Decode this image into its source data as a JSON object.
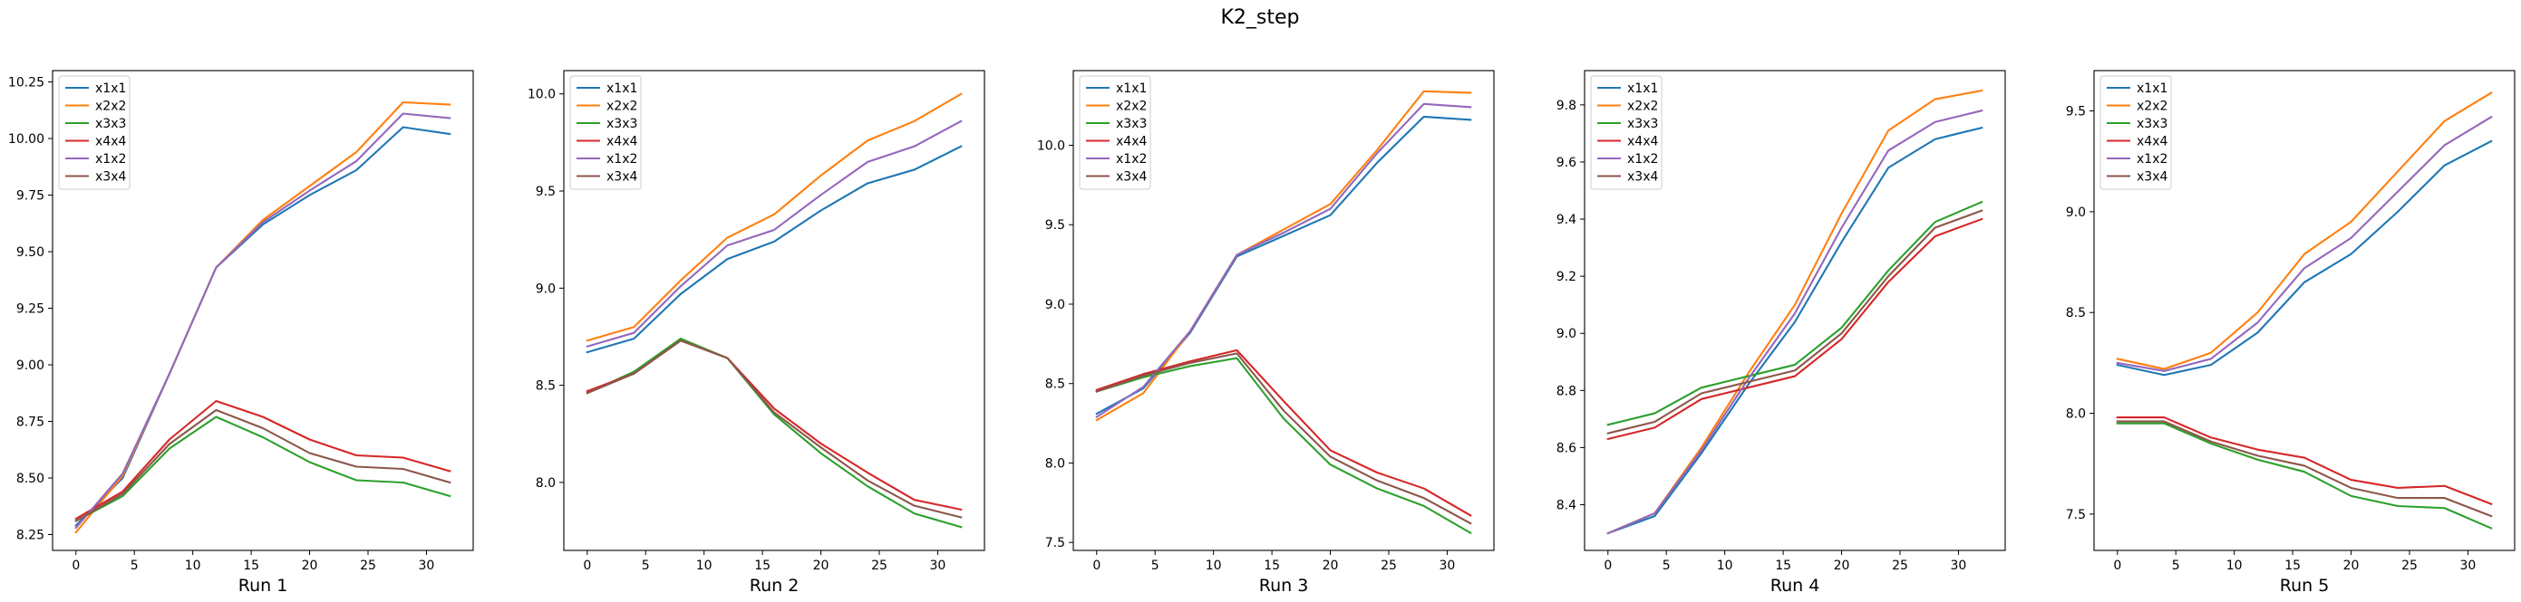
{
  "figure": {
    "suptitle": "K2_step"
  },
  "chart_data": [
    {
      "type": "line",
      "xlabel": "Run 1",
      "x": [
        0,
        4,
        8,
        12,
        16,
        20,
        24,
        28,
        32
      ],
      "xlim": [
        -2,
        34
      ],
      "ylim": [
        8.18,
        10.3
      ],
      "xticks": [
        0,
        5,
        10,
        15,
        20,
        25,
        30
      ],
      "yticks": [
        8.25,
        8.5,
        8.75,
        9.0,
        9.25,
        9.5,
        9.75,
        10.0,
        10.25
      ],
      "ytick_decimals": 2,
      "legend_position": "upper-left",
      "series": [
        {
          "name": "x1x1",
          "color": "#1f77b4",
          "values": [
            8.29,
            8.5,
            8.96,
            9.43,
            9.62,
            9.75,
            9.86,
            10.05,
            10.02
          ]
        },
        {
          "name": "x2x2",
          "color": "#ff7f0e",
          "values": [
            8.26,
            8.51,
            8.96,
            9.43,
            9.64,
            9.79,
            9.94,
            10.16,
            10.15
          ]
        },
        {
          "name": "x3x3",
          "color": "#2ca02c",
          "values": [
            8.31,
            8.42,
            8.63,
            8.77,
            8.68,
            8.57,
            8.49,
            8.48,
            8.42
          ]
        },
        {
          "name": "x4x4",
          "color": "#d62728",
          "values": [
            8.32,
            8.44,
            8.67,
            8.84,
            8.77,
            8.67,
            8.6,
            8.59,
            8.53
          ]
        },
        {
          "name": "x1x2",
          "color": "#9467bd",
          "values": [
            8.28,
            8.52,
            8.96,
            9.43,
            9.63,
            9.77,
            9.9,
            10.11,
            10.09
          ]
        },
        {
          "name": "x3x4",
          "color": "#8c564b",
          "values": [
            8.31,
            8.43,
            8.65,
            8.8,
            8.72,
            8.61,
            8.55,
            8.54,
            8.48
          ]
        }
      ]
    },
    {
      "type": "line",
      "xlabel": "Run 2",
      "x": [
        0,
        4,
        8,
        12,
        16,
        20,
        24,
        28,
        32
      ],
      "xlim": [
        -2,
        34
      ],
      "ylim": [
        7.65,
        10.12
      ],
      "xticks": [
        0,
        5,
        10,
        15,
        20,
        25,
        30
      ],
      "yticks": [
        8.0,
        8.5,
        9.0,
        9.5,
        10.0
      ],
      "ytick_decimals": 1,
      "legend_position": "upper-left",
      "series": [
        {
          "name": "x1x1",
          "color": "#1f77b4",
          "values": [
            8.67,
            8.74,
            8.97,
            9.15,
            9.24,
            9.4,
            9.54,
            9.61,
            9.73
          ]
        },
        {
          "name": "x2x2",
          "color": "#ff7f0e",
          "values": [
            8.73,
            8.8,
            9.04,
            9.26,
            9.38,
            9.58,
            9.76,
            9.86,
            10.0
          ]
        },
        {
          "name": "x3x3",
          "color": "#2ca02c",
          "values": [
            8.46,
            8.57,
            8.74,
            8.64,
            8.35,
            8.15,
            7.98,
            7.84,
            7.77
          ]
        },
        {
          "name": "x4x4",
          "color": "#d62728",
          "values": [
            8.47,
            8.56,
            8.73,
            8.64,
            8.38,
            8.2,
            8.05,
            7.91,
            7.86
          ]
        },
        {
          "name": "x1x2",
          "color": "#9467bd",
          "values": [
            8.7,
            8.77,
            9.01,
            9.22,
            9.3,
            9.48,
            9.65,
            9.73,
            9.86
          ]
        },
        {
          "name": "x3x4",
          "color": "#8c564b",
          "values": [
            8.46,
            8.56,
            8.73,
            8.64,
            8.36,
            8.18,
            8.01,
            7.88,
            7.82
          ]
        }
      ]
    },
    {
      "type": "line",
      "xlabel": "Run 3",
      "x": [
        0,
        4,
        8,
        12,
        16,
        20,
        24,
        28,
        32
      ],
      "xlim": [
        -2,
        34
      ],
      "ylim": [
        7.45,
        10.47
      ],
      "xticks": [
        0,
        5,
        10,
        15,
        20,
        25,
        30
      ],
      "yticks": [
        7.5,
        8.0,
        8.5,
        9.0,
        9.5,
        10.0
      ],
      "ytick_decimals": 1,
      "legend_position": "upper-left",
      "series": [
        {
          "name": "x1x1",
          "color": "#1f77b4",
          "values": [
            8.31,
            8.47,
            8.82,
            9.3,
            9.43,
            9.56,
            9.89,
            10.18,
            10.16
          ]
        },
        {
          "name": "x2x2",
          "color": "#ff7f0e",
          "values": [
            8.27,
            8.44,
            8.83,
            9.31,
            9.47,
            9.63,
            9.97,
            10.34,
            10.33
          ]
        },
        {
          "name": "x3x3",
          "color": "#2ca02c",
          "values": [
            8.45,
            8.54,
            8.61,
            8.66,
            8.28,
            7.99,
            7.84,
            7.73,
            7.56
          ]
        },
        {
          "name": "x4x4",
          "color": "#d62728",
          "values": [
            8.46,
            8.56,
            8.64,
            8.71,
            8.39,
            8.08,
            7.94,
            7.84,
            7.67
          ]
        },
        {
          "name": "x1x2",
          "color": "#9467bd",
          "values": [
            8.29,
            8.48,
            8.83,
            9.31,
            9.45,
            9.6,
            9.95,
            10.26,
            10.24
          ]
        },
        {
          "name": "x3x4",
          "color": "#8c564b",
          "values": [
            8.45,
            8.55,
            8.63,
            8.69,
            8.33,
            8.04,
            7.89,
            7.78,
            7.62
          ]
        }
      ]
    },
    {
      "type": "line",
      "xlabel": "Run 4",
      "x": [
        0,
        4,
        8,
        12,
        16,
        20,
        24,
        28,
        32
      ],
      "xlim": [
        -2,
        34
      ],
      "ylim": [
        8.24,
        9.92
      ],
      "xticks": [
        0,
        5,
        10,
        15,
        20,
        25,
        30
      ],
      "yticks": [
        8.4,
        8.6,
        8.8,
        9.0,
        9.2,
        9.4,
        9.6,
        9.8
      ],
      "ytick_decimals": 1,
      "legend_position": "upper-left",
      "series": [
        {
          "name": "x1x1",
          "color": "#1f77b4",
          "values": [
            8.3,
            8.36,
            8.58,
            8.82,
            9.04,
            9.32,
            9.58,
            9.68,
            9.72
          ]
        },
        {
          "name": "x2x2",
          "color": "#ff7f0e",
          "values": [
            8.3,
            8.37,
            8.6,
            8.86,
            9.1,
            9.42,
            9.71,
            9.82,
            9.85
          ]
        },
        {
          "name": "x3x3",
          "color": "#2ca02c",
          "values": [
            8.68,
            8.72,
            8.81,
            8.85,
            8.89,
            9.02,
            9.22,
            9.39,
            9.46
          ]
        },
        {
          "name": "x4x4",
          "color": "#d62728",
          "values": [
            8.63,
            8.67,
            8.77,
            8.81,
            8.85,
            8.98,
            9.18,
            9.34,
            9.4
          ]
        },
        {
          "name": "x1x2",
          "color": "#9467bd",
          "values": [
            8.3,
            8.37,
            8.59,
            8.84,
            9.07,
            9.37,
            9.64,
            9.74,
            9.78
          ]
        },
        {
          "name": "x3x4",
          "color": "#8c564b",
          "values": [
            8.65,
            8.69,
            8.79,
            8.83,
            8.87,
            9.0,
            9.2,
            9.37,
            9.43
          ]
        }
      ]
    },
    {
      "type": "line",
      "xlabel": "Run 5",
      "x": [
        0,
        4,
        8,
        12,
        16,
        20,
        24,
        28,
        32
      ],
      "xlim": [
        -2,
        34
      ],
      "ylim": [
        7.32,
        9.7
      ],
      "xticks": [
        0,
        5,
        10,
        15,
        20,
        25,
        30
      ],
      "yticks": [
        7.5,
        8.0,
        8.5,
        9.0,
        9.5
      ],
      "ytick_decimals": 1,
      "legend_position": "upper-left",
      "series": [
        {
          "name": "x1x1",
          "color": "#1f77b4",
          "values": [
            8.24,
            8.19,
            8.24,
            8.4,
            8.65,
            8.79,
            9.0,
            9.23,
            9.35
          ]
        },
        {
          "name": "x2x2",
          "color": "#ff7f0e",
          "values": [
            8.27,
            8.22,
            8.3,
            8.5,
            8.79,
            8.95,
            9.2,
            9.45,
            9.59
          ]
        },
        {
          "name": "x3x3",
          "color": "#2ca02c",
          "values": [
            7.95,
            7.95,
            7.85,
            7.77,
            7.71,
            7.59,
            7.54,
            7.53,
            7.43
          ]
        },
        {
          "name": "x4x4",
          "color": "#d62728",
          "values": [
            7.98,
            7.98,
            7.88,
            7.82,
            7.78,
            7.67,
            7.63,
            7.64,
            7.55
          ]
        },
        {
          "name": "x1x2",
          "color": "#9467bd",
          "values": [
            8.25,
            8.21,
            8.27,
            8.45,
            8.72,
            8.87,
            9.1,
            9.33,
            9.47
          ]
        },
        {
          "name": "x3x4",
          "color": "#8c564b",
          "values": [
            7.96,
            7.96,
            7.86,
            7.79,
            7.74,
            7.63,
            7.58,
            7.58,
            7.49
          ]
        }
      ]
    }
  ]
}
